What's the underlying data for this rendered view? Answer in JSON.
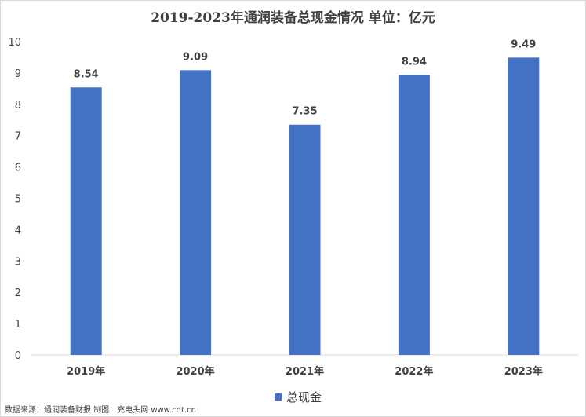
{
  "chart_data": {
    "type": "bar",
    "title": "2019-2023年通润装备总现金情况  单位：亿元",
    "categories": [
      "2019年",
      "2020年",
      "2021年",
      "2022年",
      "2023年"
    ],
    "series": [
      {
        "name": "总现金",
        "values": [
          8.54,
          9.09,
          7.35,
          8.94,
          9.49
        ],
        "color": "#4472c4"
      }
    ],
    "ylim": [
      0,
      10
    ],
    "yticks": [
      0,
      1,
      2,
      3,
      4,
      5,
      6,
      7,
      8,
      9,
      10
    ],
    "grid": false,
    "legend": "bottom",
    "xlabel": "",
    "ylabel": ""
  },
  "source_note": "数据来源：通润装备财报  制图：充电头网 www.cdt.cn"
}
